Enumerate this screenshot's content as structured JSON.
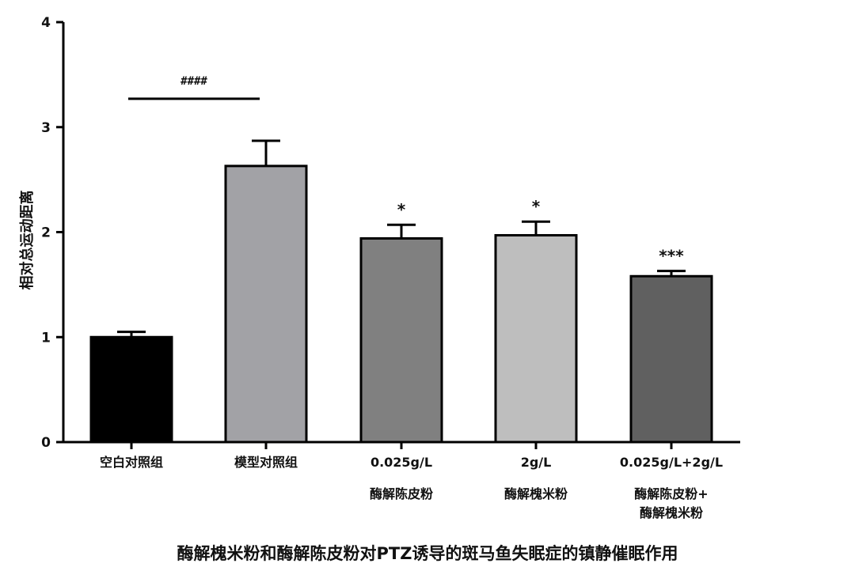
{
  "chart_data": {
    "type": "bar",
    "title": "",
    "caption": "酶解槐米粉和酶解陈皮粉对PTZ诱导的斑马鱼失眠症的镇静催眠作用",
    "ylabel": "相对总运动距离",
    "xlabel": "",
    "ylim": [
      0,
      4
    ],
    "yticks": [
      "0",
      "1",
      "2",
      "3",
      "4"
    ],
    "grid": false,
    "legend": "none",
    "categories": [
      {
        "lines": [
          "空白对照组"
        ]
      },
      {
        "lines": [
          "模型对照组"
        ]
      },
      {
        "lines": [
          "0.025g/L",
          "酶解陈皮粉"
        ]
      },
      {
        "lines": [
          "2g/L",
          "酶解槐米粉"
        ]
      },
      {
        "lines": [
          "0.025g/L+2g/L",
          "酶解陈皮粉+",
          "酶解槐米粉"
        ]
      }
    ],
    "values": [
      1.0,
      2.63,
      1.94,
      1.97,
      1.58
    ],
    "errors": [
      0.05,
      0.24,
      0.13,
      0.13,
      0.05
    ],
    "colors": [
      "#000000",
      "#a2a2a6",
      "#808080",
      "#bebebe",
      "#606060"
    ],
    "significance": [
      "",
      "",
      "*",
      "*",
      "***"
    ],
    "comparison": {
      "from": 0,
      "to": 1,
      "label": "####"
    }
  }
}
